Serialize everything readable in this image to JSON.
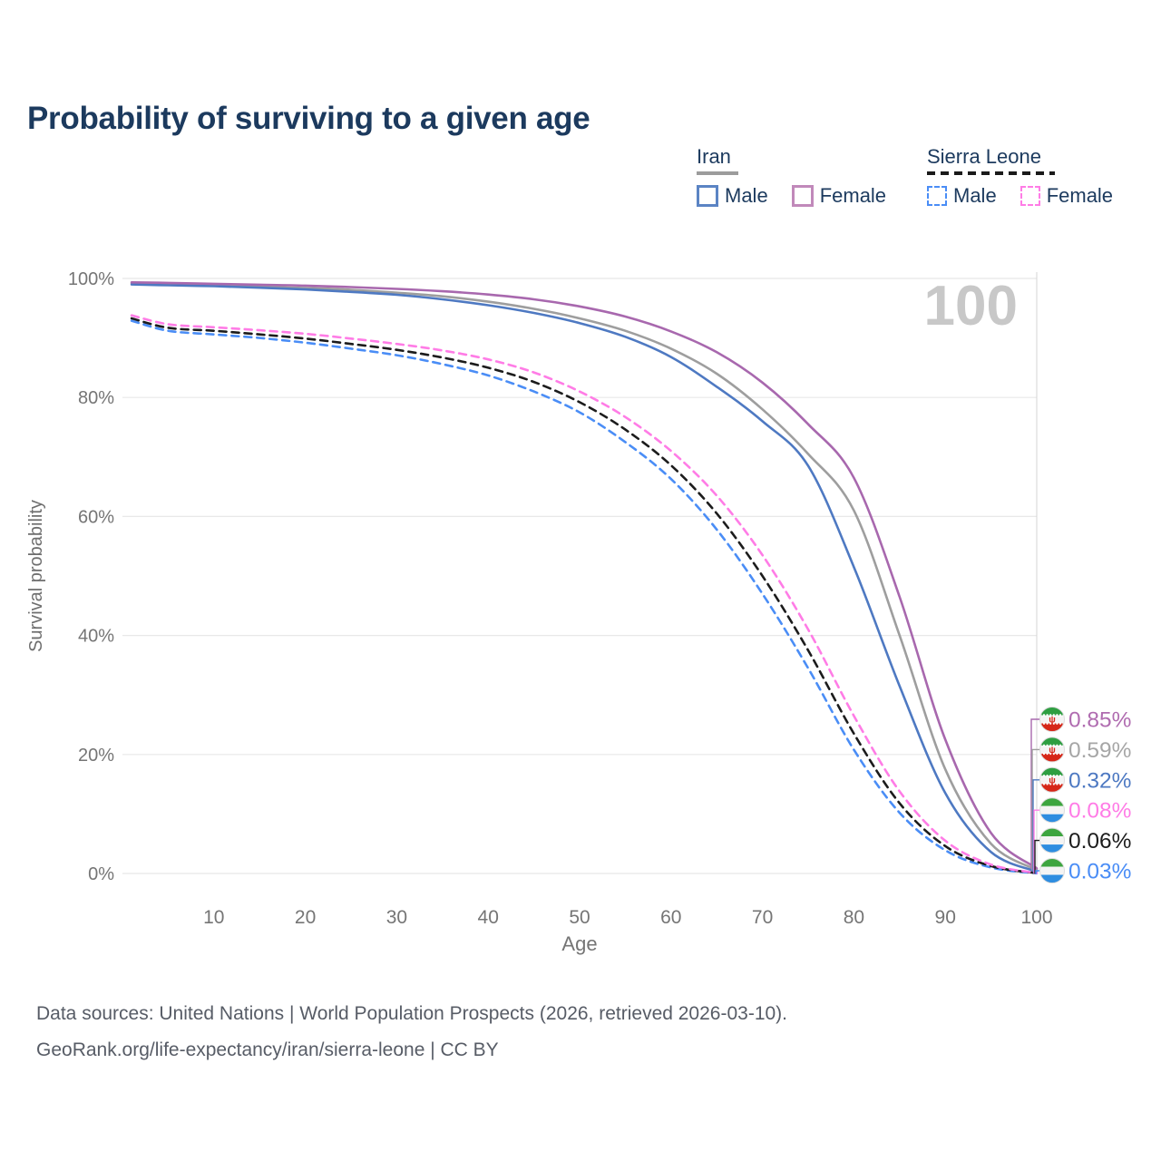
{
  "title": "Probability of surviving to a given age",
  "legend": {
    "groups": [
      {
        "label": "Iran",
        "line_style": "solid",
        "underline_color": "#9c9c9c",
        "underline_width": 46,
        "items": [
          {
            "label": "Male",
            "color": "#5b84c4",
            "dashed": false
          },
          {
            "label": "Female",
            "color": "#c189ba",
            "dashed": false
          }
        ]
      },
      {
        "label": "Sierra Leone",
        "line_style": "dashed",
        "underline_color": "#1a1a1a",
        "underline_width": 141,
        "items": [
          {
            "label": "Male",
            "color": "#4a8df6",
            "dashed": true
          },
          {
            "label": "Female",
            "color": "#ff7ce6",
            "dashed": true
          }
        ]
      }
    ]
  },
  "chart_data": {
    "type": "line",
    "title": "Probability of surviving to a given age",
    "xlabel": "Age",
    "ylabel": "Survival probability",
    "x_range": [
      0,
      100
    ],
    "y_range": [
      0,
      100
    ],
    "grid": "horizontal",
    "legend_position": "top-right",
    "watermark": "100",
    "hover_age": 100,
    "x_ticks": [
      {
        "v": 10,
        "label": "10"
      },
      {
        "v": 20,
        "label": "20"
      },
      {
        "v": 30,
        "label": "30"
      },
      {
        "v": 40,
        "label": "40"
      },
      {
        "v": 50,
        "label": "50"
      },
      {
        "v": 60,
        "label": "60"
      },
      {
        "v": 70,
        "label": "70"
      },
      {
        "v": 80,
        "label": "80"
      },
      {
        "v": 90,
        "label": "90"
      },
      {
        "v": 100,
        "label": "100"
      }
    ],
    "y_ticks": [
      {
        "v": 0,
        "label": "0%"
      },
      {
        "v": 20,
        "label": "20%"
      },
      {
        "v": 40,
        "label": "40%"
      },
      {
        "v": 60,
        "label": "60%"
      },
      {
        "v": 80,
        "label": "80%"
      },
      {
        "v": 100,
        "label": "100%"
      }
    ],
    "ages": [
      1,
      5,
      10,
      15,
      20,
      25,
      30,
      35,
      40,
      45,
      50,
      55,
      60,
      65,
      70,
      75,
      80,
      85,
      90,
      95,
      100
    ],
    "series": [
      {
        "id": "iran-female",
        "country": "Iran",
        "sex": "Female",
        "flag": "iran",
        "color": "#a868ae",
        "label_color": "#b06cb0",
        "dashed": false,
        "end_label": "0.85%",
        "values": [
          99.35,
          99.25,
          99.1,
          98.95,
          98.8,
          98.55,
          98.25,
          97.85,
          97.3,
          96.5,
          95.3,
          93.6,
          91.1,
          87.6,
          82.5,
          75.5,
          66.5,
          46.5,
          22.5,
          6.8,
          0.85
        ]
      },
      {
        "id": "iran-both",
        "country": "Iran",
        "sex": "Both sexes",
        "flag": "iran",
        "color": "#9e9e9e",
        "label_color": "#a6a6a6",
        "dashed": false,
        "end_label": "0.59%",
        "values": [
          99.15,
          99.0,
          98.85,
          98.65,
          98.4,
          98.1,
          97.6,
          97.0,
          96.1,
          94.9,
          93.3,
          91.2,
          88.2,
          84.0,
          78.0,
          70.5,
          61.0,
          40.0,
          17.5,
          5.0,
          0.59
        ]
      },
      {
        "id": "iran-male",
        "country": "Iran",
        "sex": "Male",
        "flag": "iran",
        "color": "#4e79c2",
        "label_color": "#4e79c2",
        "dashed": false,
        "end_label": "0.32%",
        "values": [
          99.0,
          98.85,
          98.7,
          98.45,
          98.15,
          97.75,
          97.25,
          96.5,
          95.5,
          94.2,
          92.5,
          90.2,
          86.8,
          81.8,
          76.0,
          68.5,
          51.5,
          31.5,
          13.5,
          3.6,
          0.32
        ]
      },
      {
        "id": "sierra-leone-female",
        "country": "Sierra Leone",
        "sex": "Female",
        "flag": "sierra-leone",
        "color": "#ff7ce6",
        "label_color": "#ff7ce6",
        "dashed": true,
        "end_label": "0.08%",
        "values": [
          93.8,
          92.3,
          91.8,
          91.3,
          90.7,
          89.9,
          89.0,
          87.9,
          86.4,
          84.2,
          81.0,
          76.7,
          71.0,
          63.5,
          53.5,
          41.0,
          26.5,
          13.8,
          5.5,
          1.5,
          0.08
        ]
      },
      {
        "id": "sierra-leone-both",
        "country": "Sierra Leone",
        "sex": "Both sexes",
        "flag": "sierra-leone",
        "color": "#1c1c1c",
        "label_color": "#1c1c1c",
        "dashed": true,
        "end_label": "0.06%",
        "values": [
          93.3,
          91.7,
          91.2,
          90.6,
          89.9,
          89.0,
          88.0,
          86.7,
          85.0,
          82.6,
          79.2,
          74.6,
          68.6,
          60.5,
          50.0,
          37.5,
          23.5,
          11.8,
          4.6,
          1.25,
          0.06
        ]
      },
      {
        "id": "sierra-leone-male",
        "country": "Sierra Leone",
        "sex": "Male",
        "flag": "sierra-leone",
        "color": "#4a8df6",
        "label_color": "#4a8df6",
        "dashed": true,
        "end_label": "0.03%",
        "values": [
          92.9,
          91.2,
          90.6,
          90.0,
          89.2,
          88.2,
          87.1,
          85.6,
          83.7,
          81.0,
          77.5,
          72.5,
          66.3,
          57.8,
          47.0,
          34.5,
          20.8,
          10.2,
          3.9,
          1.0,
          0.03
        ]
      }
    ],
    "colors": {
      "grid": "#e8e8e8",
      "hover_line": "#d4d4d4",
      "tick_text": "#757575",
      "axis_title": "#6e6e6e",
      "watermark": "#c8c8c8",
      "flag_iran_green": "#2e9e41",
      "flag_iran_red": "#d62718",
      "flag_sl_green": "#3da53f",
      "flag_sl_blue": "#2e8de0"
    }
  },
  "footer": {
    "line1": "Data sources: United Nations | World Population Prospects (2026, retrieved 2026-03-10).",
    "line2": "GeoRank.org/life-expectancy/iran/sierra-leone | CC BY"
  }
}
